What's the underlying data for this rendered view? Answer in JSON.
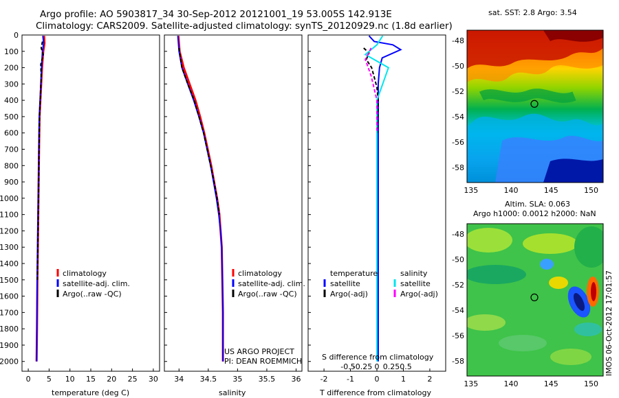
{
  "figure": {
    "title_line1": "Argo profile: AO 5903817_34 30-Sep-2012 20121001_19 53.005S 142.913E",
    "title_line2": "Climatology: CARS2009. Satellite-adjusted climatology: synTS_20120929.nc (1.8d earlier)",
    "credit_line1": "US ARGO PROJECT",
    "credit_line2": "PI: DEAN ROEMMICH",
    "stamp": "IMOS 06-Oct-2012 17:01:57"
  },
  "colors": {
    "climatology": "#ff0000",
    "satellite": "#0000ff",
    "argo": "#000000",
    "salinity_satellite": "#00e5ee",
    "salinity_argo": "#ff00ff"
  },
  "chart_data": [
    {
      "type": "line",
      "xlabel": "temperature (deg C)",
      "ylabel": "",
      "xlim": [
        -1.5,
        31.5
      ],
      "ylim": [
        2060,
        0
      ],
      "xticks": [
        0,
        5,
        10,
        15,
        20,
        25,
        30
      ],
      "yticks": [
        0,
        100,
        200,
        300,
        400,
        500,
        600,
        700,
        800,
        900,
        1000,
        1100,
        1200,
        1300,
        1400,
        1500,
        1600,
        1700,
        1800,
        1900,
        2000
      ],
      "legend": [
        "climatology",
        "satellite-adj. clim.",
        "Argo(..raw -QC)"
      ],
      "series": [
        {
          "name": "climatology",
          "color": "#ff0000",
          "x": [
            3.8,
            3.9,
            3.6,
            3.3,
            3.1,
            2.9,
            2.7,
            2.6,
            2.5,
            2.4,
            2.3,
            2.2,
            2.1,
            2.0
          ],
          "y": [
            5,
            50,
            100,
            200,
            300,
            400,
            500,
            700,
            900,
            1100,
            1300,
            1500,
            1800,
            2000
          ]
        },
        {
          "name": "satellite-adj. clim.",
          "color": "#0000ff",
          "x": [
            3.5,
            3.7,
            3.4,
            3.2,
            3.0,
            2.85,
            2.65,
            2.55,
            2.45,
            2.35,
            2.25,
            2.15,
            2.05,
            2.0
          ],
          "y": [
            5,
            50,
            100,
            200,
            300,
            400,
            500,
            700,
            900,
            1100,
            1300,
            1500,
            1800,
            2000
          ]
        },
        {
          "name": "Argo(..raw -QC)",
          "color": "#000000",
          "x": [
            3.4,
            3.1,
            3.6,
            3.0,
            3.1,
            2.9,
            2.7,
            2.6,
            2.5,
            2.4,
            2.3,
            2.2
          ],
          "y": [
            40,
            80,
            120,
            180,
            260,
            380,
            500,
            700,
            900,
            1100,
            1300,
            1500
          ]
        }
      ]
    },
    {
      "type": "line",
      "xlabel": "salinity",
      "xlim": [
        33.75,
        36.1
      ],
      "ylim": [
        2060,
        0
      ],
      "xticks": [
        34,
        34.5,
        35,
        35.5,
        36
      ],
      "legend": [
        "climatology",
        "satellite-adj. clim.",
        "Argo(..raw -QC)"
      ],
      "series": [
        {
          "name": "climatology",
          "color": "#ff0000",
          "x": [
            33.99,
            34.01,
            34.08,
            34.18,
            34.28,
            34.36,
            34.43,
            34.49,
            34.55,
            34.6,
            34.65,
            34.69,
            34.71,
            34.73,
            34.74,
            34.75,
            34.75
          ],
          "y": [
            5,
            100,
            200,
            300,
            400,
            500,
            600,
            700,
            800,
            900,
            1000,
            1100,
            1200,
            1300,
            1500,
            1700,
            2000
          ]
        },
        {
          "name": "satellite-adj. clim.",
          "color": "#0000ff",
          "x": [
            33.98,
            34.0,
            34.05,
            34.15,
            34.25,
            34.34,
            34.42,
            34.48,
            34.54,
            34.59,
            34.64,
            34.68,
            34.71,
            34.73,
            34.74,
            34.75,
            34.75
          ],
          "y": [
            5,
            100,
            200,
            300,
            400,
            500,
            600,
            700,
            800,
            900,
            1000,
            1100,
            1200,
            1300,
            1500,
            1700,
            2000
          ]
        },
        {
          "name": "Argo(..raw -QC)",
          "color": "#000000",
          "x": [
            34.0,
            34.05,
            34.15,
            34.26,
            34.34,
            34.42,
            34.48,
            34.54,
            34.6,
            34.65,
            34.69
          ],
          "y": [
            80,
            200,
            300,
            400,
            500,
            600,
            700,
            800,
            900,
            1000,
            1100
          ]
        }
      ]
    },
    {
      "type": "line",
      "xlabel": "T difference from climatology",
      "x2label": "S difference from climatology",
      "xlim": [
        -2.6,
        2.6
      ],
      "ylim": [
        2060,
        0
      ],
      "xticks": [
        -2,
        -1,
        0,
        1,
        2
      ],
      "x2ticks": [
        -0.5,
        -0.25,
        0,
        0.25,
        0.5
      ],
      "legend_temperature_title": "temperature",
      "legend_salinity_title": "salinity",
      "legend": [
        "satellite",
        "Argo(-adj)",
        "satellite",
        "Argo(-adj)"
      ],
      "series": [
        {
          "name": "satellite",
          "group": "temperature",
          "color": "#0000ff",
          "x": [
            -0.3,
            -0.1,
            0.6,
            0.9,
            0.2,
            0.1,
            0.05,
            0.05,
            0.05,
            0.05,
            0.05,
            0.05,
            0.05
          ],
          "y": [
            5,
            40,
            60,
            90,
            140,
            200,
            300,
            500,
            800,
            1100,
            1400,
            1700,
            2000
          ]
        },
        {
          "name": "Argo(-adj)",
          "group": "temperature",
          "color": "#000000",
          "x": [
            -0.5,
            -0.3,
            -0.4,
            -0.2,
            -0.1,
            0.0,
            0.05,
            0.02
          ],
          "y": [
            80,
            110,
            150,
            200,
            260,
            320,
            400,
            600
          ]
        },
        {
          "name": "satellite",
          "group": "salinity",
          "color": "#00e5ee",
          "x": [
            0.1,
            0.0,
            -0.2,
            0.2,
            0.1,
            0.0,
            0.0,
            0.0,
            0.0,
            0.0,
            0.0
          ],
          "y": [
            5,
            60,
            120,
            200,
            300,
            400,
            600,
            900,
            1300,
            1700,
            2000
          ]
        },
        {
          "name": "Argo(-adj)",
          "group": "salinity",
          "color": "#ff00ff",
          "x": [
            -0.1,
            -0.2,
            -0.1,
            0.0,
            0.0
          ],
          "y": [
            80,
            150,
            250,
            400,
            600
          ]
        }
      ]
    },
    {
      "type": "heatmap",
      "title": "sat. SST: 2.8 Argo: 3.54",
      "xlim": [
        134.5,
        151.5
      ],
      "ylim": [
        -59.2,
        -47.2
      ],
      "xticks": [
        135,
        140,
        145,
        150
      ],
      "yticks": [
        -48,
        -50,
        -52,
        -54,
        -56,
        -58
      ],
      "marker": {
        "lon": 142.913,
        "lat": -53.005
      }
    },
    {
      "type": "heatmap",
      "title_line1": "Altim. SLA: 0.063",
      "title_line2": "Argo h1000: 0.0012 h2000: NaN",
      "xlim": [
        134.5,
        151.5
      ],
      "ylim": [
        -59.2,
        -47.2
      ],
      "xticks": [
        135,
        140,
        145,
        150
      ],
      "yticks": [
        -48,
        -50,
        -52,
        -54,
        -56,
        -58
      ],
      "marker": {
        "lon": 142.913,
        "lat": -53.005
      }
    }
  ]
}
